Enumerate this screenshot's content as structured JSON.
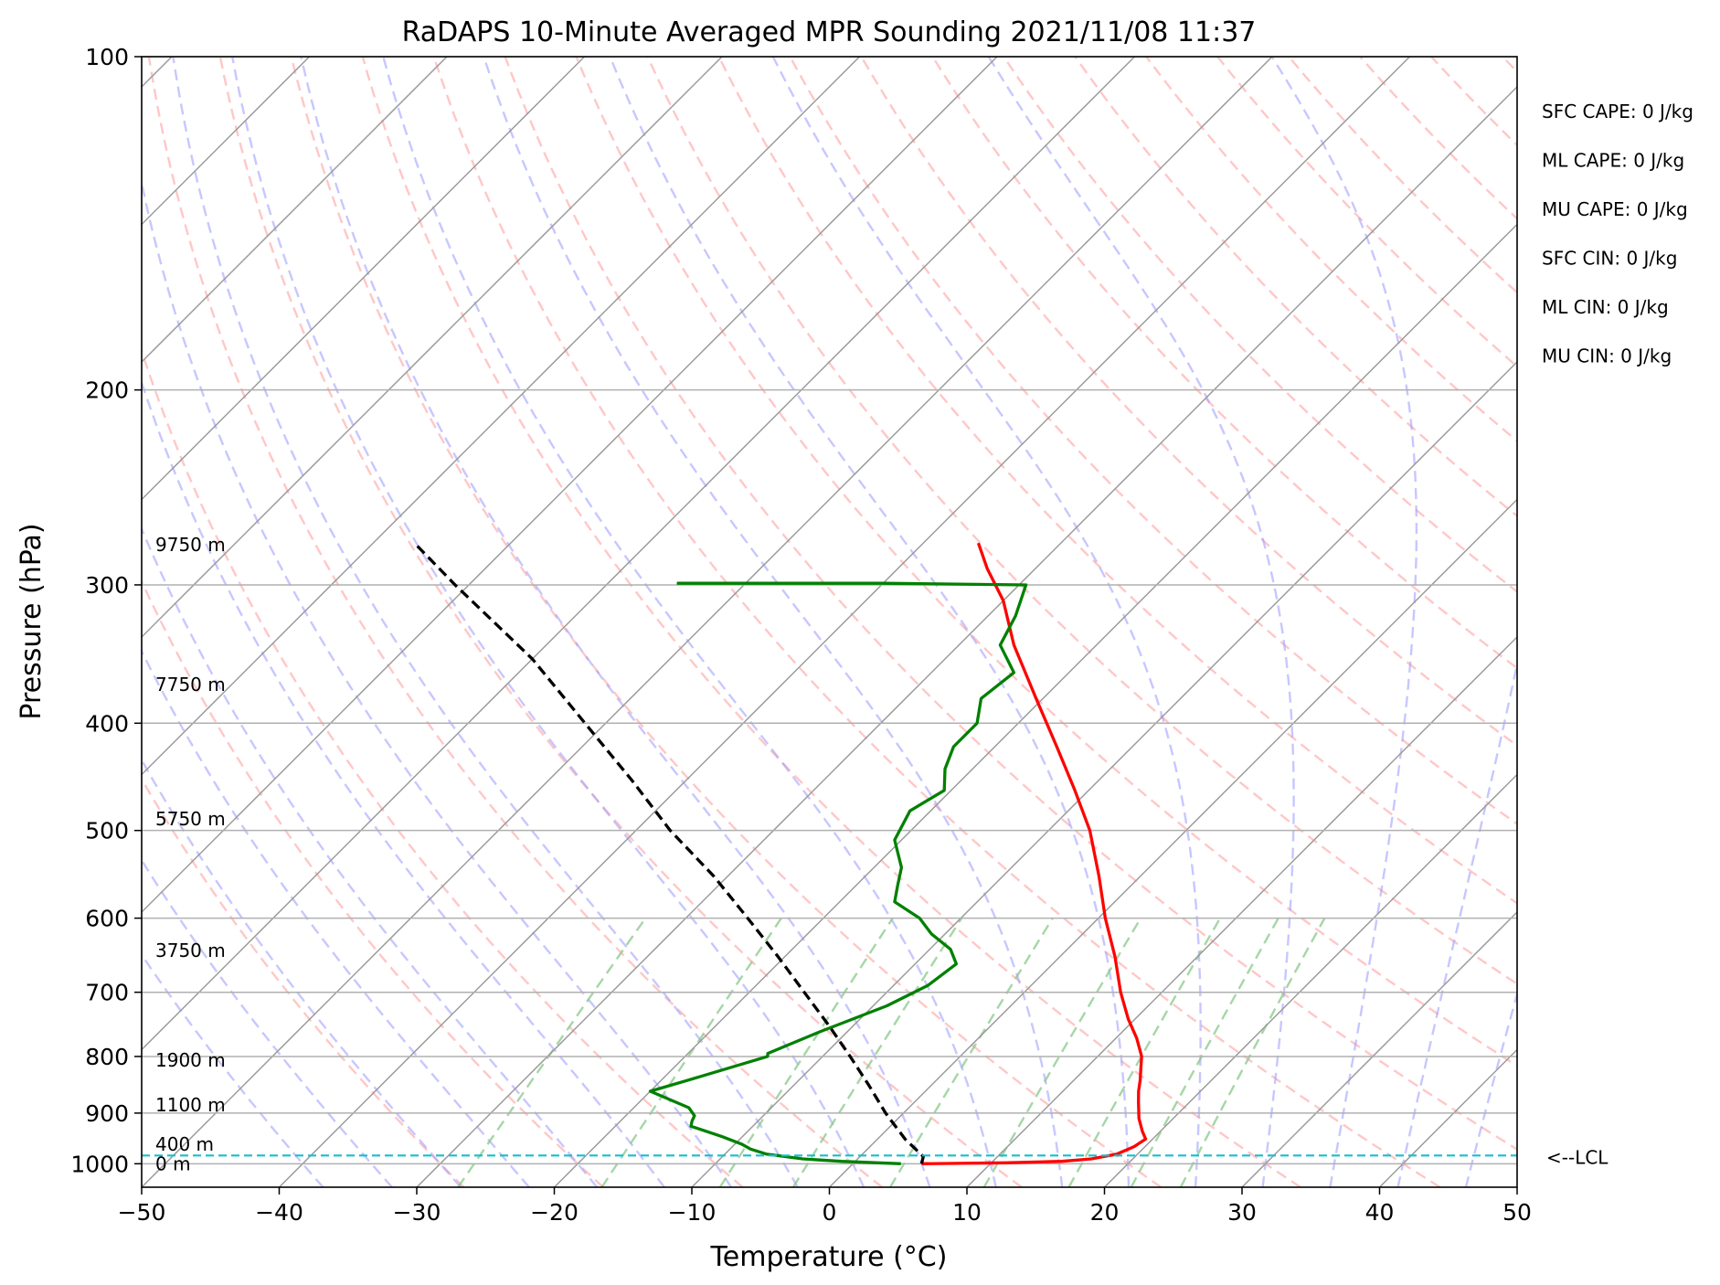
{
  "chart_data": {
    "type": "line",
    "title": "RaDAPS 10-Minute Averaged MPR Sounding 2021/11/08 11:37",
    "xlabel": "Temperature (°C)",
    "ylabel": "Pressure (hPa)",
    "xlim": [
      -50,
      50
    ],
    "ylim": [
      1050,
      100
    ],
    "y_scale": "log",
    "skew": true,
    "grid": true,
    "x_ticks": [
      -50,
      -40,
      -30,
      -20,
      -10,
      0,
      10,
      20,
      30,
      40,
      50
    ],
    "x_tick_labels": [
      "−50",
      "−40",
      "−30",
      "−20",
      "−10",
      "0",
      "10",
      "20",
      "30",
      "40",
      "50"
    ],
    "y_ticks": [
      100,
      200,
      300,
      400,
      500,
      600,
      700,
      800,
      900,
      1000
    ],
    "y_tick_labels": [
      "100",
      "200",
      "300",
      "400",
      "500",
      "600",
      "700",
      "800",
      "900",
      "1000"
    ],
    "series": [
      {
        "color": "#ff0000",
        "points": [
          [
            1000,
            5
          ],
          [
            998,
            11
          ],
          [
            995,
            15
          ],
          [
            990,
            17
          ],
          [
            980,
            18.5
          ],
          [
            965,
            19.2
          ],
          [
            950,
            19.5
          ],
          [
            935,
            18.7
          ],
          [
            910,
            17.5
          ],
          [
            880,
            16.3
          ],
          [
            860,
            15.5
          ],
          [
            840,
            14.8
          ],
          [
            820,
            14
          ],
          [
            800,
            13.2
          ],
          [
            770,
            11.5
          ],
          [
            740,
            9.5
          ],
          [
            700,
            7
          ],
          [
            650,
            4
          ],
          [
            600,
            0.5
          ],
          [
            550,
            -3
          ],
          [
            500,
            -7
          ],
          [
            460,
            -11
          ],
          [
            420,
            -15.5
          ],
          [
            380,
            -20.5
          ],
          [
            340,
            -26
          ],
          [
            310,
            -30
          ],
          [
            290,
            -33.5
          ],
          [
            275,
            -36
          ]
        ]
      },
      {
        "color": "#008000",
        "points": [
          [
            1000,
            3.5
          ],
          [
            995,
            -1
          ],
          [
            990,
            -4
          ],
          [
            980,
            -7
          ],
          [
            970,
            -8.5
          ],
          [
            960,
            -9.5
          ],
          [
            945,
            -11.5
          ],
          [
            925,
            -14.5
          ],
          [
            915,
            -14.8
          ],
          [
            905,
            -15
          ],
          [
            890,
            -16
          ],
          [
            860,
            -20
          ],
          [
            840,
            -18
          ],
          [
            800,
            -14
          ],
          [
            795,
            -14.2
          ],
          [
            760,
            -12
          ],
          [
            720,
            -9
          ],
          [
            690,
            -7.5
          ],
          [
            660,
            -7
          ],
          [
            640,
            -8.5
          ],
          [
            620,
            -11
          ],
          [
            600,
            -13
          ],
          [
            580,
            -16
          ],
          [
            560,
            -17
          ],
          [
            540,
            -18
          ],
          [
            510,
            -20.5
          ],
          [
            480,
            -21.5
          ],
          [
            460,
            -20.5
          ],
          [
            440,
            -22
          ],
          [
            420,
            -23
          ],
          [
            400,
            -23
          ],
          [
            380,
            -24.5
          ],
          [
            360,
            -24
          ],
          [
            340,
            -27
          ],
          [
            320,
            -28
          ],
          [
            300,
            -29.5
          ],
          [
            299,
            -40
          ],
          [
            299,
            -55
          ]
        ]
      },
      {
        "color": "#000000",
        "dashed": true,
        "points": [
          [
            1000,
            5
          ],
          [
            985,
            4.6
          ],
          [
            950,
            2
          ],
          [
            900,
            -1.3
          ],
          [
            850,
            -4.5
          ],
          [
            800,
            -8
          ],
          [
            750,
            -11.8
          ],
          [
            700,
            -16
          ],
          [
            650,
            -20.5
          ],
          [
            600,
            -25.5
          ],
          [
            550,
            -31
          ],
          [
            500,
            -37.5
          ],
          [
            450,
            -44
          ],
          [
            400,
            -51.5
          ],
          [
            350,
            -60
          ],
          [
            300,
            -71
          ],
          [
            275,
            -77
          ]
        ]
      }
    ],
    "height_labels": [
      {
        "text": "0 m",
        "p": 1000
      },
      {
        "text": "400 m",
        "p": 960
      },
      {
        "text": "1100 m",
        "p": 885
      },
      {
        "text": "1900 m",
        "p": 806
      },
      {
        "text": "3750 m",
        "p": 642
      },
      {
        "text": "5750 m",
        "p": 488
      },
      {
        "text": "7750 m",
        "p": 369
      },
      {
        "text": "9750 m",
        "p": 276
      }
    ],
    "lcl": {
      "pressure": 983,
      "label": "<--LCL"
    },
    "annotations": [
      "SFC CAPE: 0 J/kg",
      "ML CAPE: 0 J/kg",
      "MU CAPE: 0 J/kg",
      "SFC CIN: 0 J/kg",
      "ML CIN: 0 J/kg",
      "MU CIN: 0 J/kg"
    ],
    "dry_adiabats_theta_K": [
      -30,
      -20,
      -10,
      0,
      10,
      20,
      30,
      40,
      50,
      60,
      70,
      80,
      90,
      100,
      110,
      120,
      130,
      140,
      150,
      160,
      170,
      180,
      190,
      200,
      210,
      220,
      230,
      240,
      250,
      260
    ],
    "moist_adiabats_C": [
      -40,
      -35,
      -30,
      -25,
      -20,
      -15,
      -10,
      -5,
      0,
      5,
      10,
      15,
      20,
      25,
      30,
      35,
      40,
      45
    ],
    "mixing_lines_gkg": [
      0.4,
      1,
      2,
      3,
      5,
      8,
      12,
      16,
      20
    ],
    "colors": {
      "temperature": "#ff0000",
      "dewpoint": "#008000",
      "parcel": "#000000",
      "lcl": "#17becf",
      "isotherm": "#9a9a9a",
      "isobar": "#b0b0b0",
      "dry_adiabat": "#ff9999",
      "moist_adiabat": "#9999ff",
      "mixing_ratio": "#88c888"
    }
  }
}
